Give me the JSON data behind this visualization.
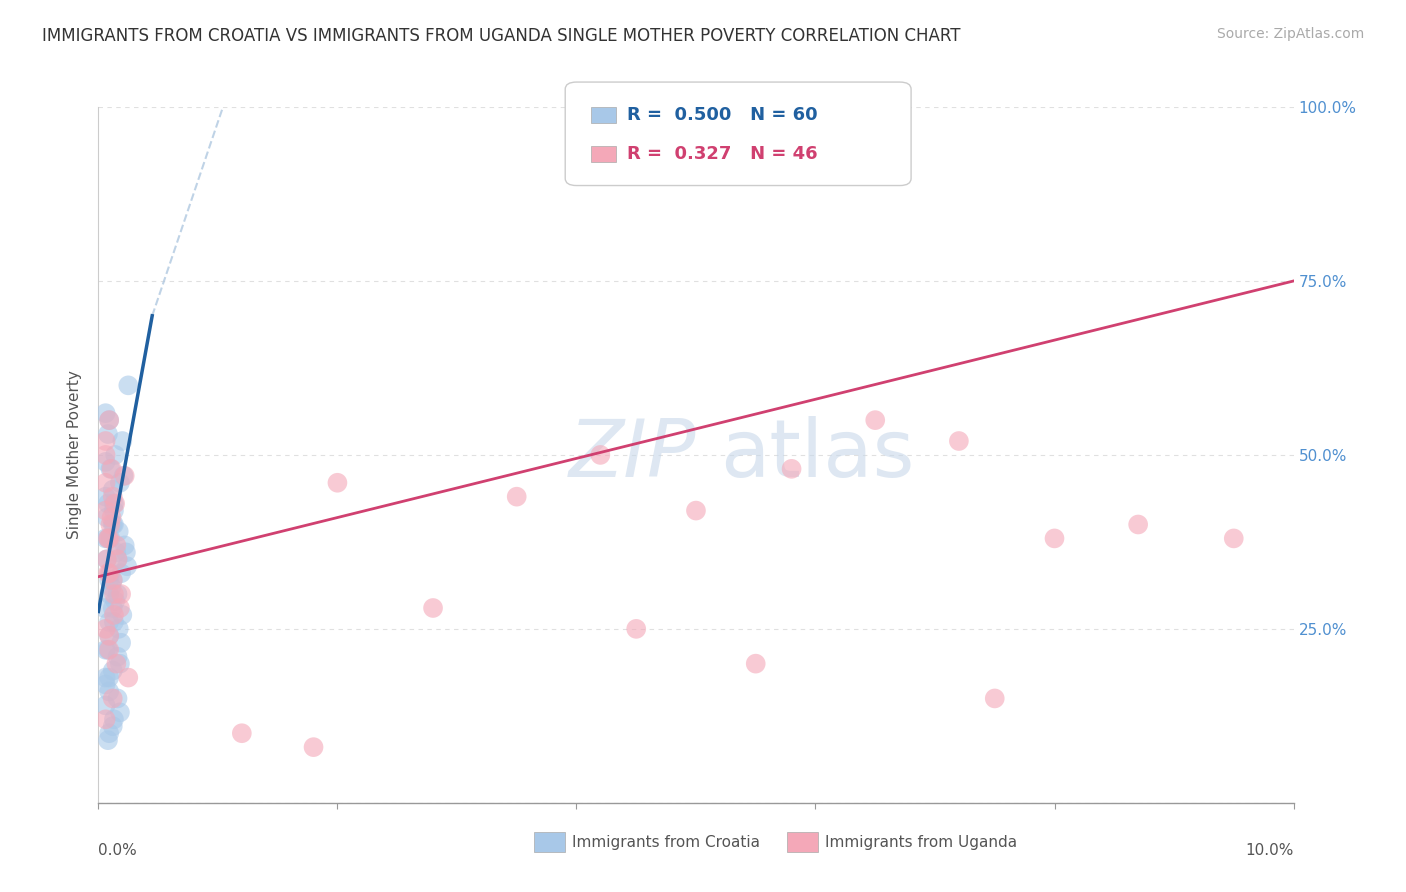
{
  "title": "IMMIGRANTS FROM CROATIA VS IMMIGRANTS FROM UGANDA SINGLE MOTHER POVERTY CORRELATION CHART",
  "source": "Source: ZipAtlas.com",
  "ylabel": "Single Mother Poverty",
  "legend_label1": "Immigrants from Croatia",
  "legend_label2": "Immigrants from Uganda",
  "r1": "0.500",
  "n1": "60",
  "r2": "0.327",
  "n2": "46",
  "color1": "#a8c8e8",
  "color2": "#f4a8b8",
  "line_color1": "#2060a0",
  "line_color2": "#d04070",
  "diag_color": "#b0c8e0",
  "xlim": [
    0.0,
    0.1
  ],
  "ylim": [
    0.0,
    1.0
  ],
  "x_ticks": [
    0.0,
    0.02,
    0.04,
    0.06,
    0.08,
    0.1
  ],
  "y_ticks": [
    0.0,
    0.25,
    0.5,
    0.75,
    1.0
  ],
  "y_tick_labels_right": [
    "",
    "25.0%",
    "50.0%",
    "75.0%",
    "100.0%"
  ],
  "bg_color": "#ffffff",
  "grid_color": "#e0e0e0",
  "watermark_color": "#c8d8ea",
  "croatia_x": [
    0.0008,
    0.0012,
    0.0008,
    0.0015,
    0.002,
    0.001,
    0.0006,
    0.0014,
    0.0018,
    0.0009,
    0.0007,
    0.0016,
    0.0013,
    0.0022,
    0.0025,
    0.0019,
    0.0012,
    0.0009,
    0.0006,
    0.0017,
    0.0021,
    0.0011,
    0.0008,
    0.0024,
    0.0005,
    0.0013,
    0.001,
    0.0016,
    0.0006,
    0.0009,
    0.0014,
    0.0007,
    0.002,
    0.001,
    0.0017,
    0.0013,
    0.0006,
    0.0023,
    0.0009,
    0.0012,
    0.0018,
    0.0006,
    0.0009,
    0.0012,
    0.0019,
    0.0009,
    0.0006,
    0.0013,
    0.0016,
    0.0009,
    0.0006,
    0.0012,
    0.0008,
    0.0016,
    0.0013,
    0.0009,
    0.0006,
    0.0018,
    0.0012,
    0.0008
  ],
  "croatia_y": [
    0.43,
    0.4,
    0.38,
    0.36,
    0.52,
    0.48,
    0.44,
    0.5,
    0.46,
    0.55,
    0.41,
    0.35,
    0.42,
    0.37,
    0.6,
    0.33,
    0.45,
    0.32,
    0.49,
    0.39,
    0.47,
    0.31,
    0.53,
    0.34,
    0.28,
    0.43,
    0.38,
    0.3,
    0.56,
    0.26,
    0.29,
    0.35,
    0.27,
    0.33,
    0.25,
    0.4,
    0.22,
    0.36,
    0.24,
    0.32,
    0.2,
    0.38,
    0.18,
    0.28,
    0.23,
    0.3,
    0.17,
    0.26,
    0.21,
    0.16,
    0.14,
    0.19,
    0.22,
    0.15,
    0.12,
    0.1,
    0.18,
    0.13,
    0.11,
    0.09
  ],
  "uganda_x": [
    0.0006,
    0.0009,
    0.0007,
    0.0012,
    0.001,
    0.0006,
    0.0015,
    0.0011,
    0.0008,
    0.0006,
    0.0013,
    0.0009,
    0.0018,
    0.0014,
    0.0012,
    0.0008,
    0.0006,
    0.0022,
    0.0016,
    0.0011,
    0.0009,
    0.0006,
    0.0013,
    0.0009,
    0.0015,
    0.0025,
    0.0019,
    0.0012,
    0.0009,
    0.0006,
    0.02,
    0.035,
    0.042,
    0.05,
    0.058,
    0.065,
    0.072,
    0.08,
    0.087,
    0.095,
    0.028,
    0.045,
    0.055,
    0.075,
    0.012,
    0.018
  ],
  "uganda_y": [
    0.42,
    0.38,
    0.35,
    0.44,
    0.4,
    0.46,
    0.37,
    0.48,
    0.33,
    0.52,
    0.3,
    0.55,
    0.28,
    0.43,
    0.32,
    0.38,
    0.25,
    0.47,
    0.35,
    0.41,
    0.22,
    0.5,
    0.27,
    0.33,
    0.2,
    0.18,
    0.3,
    0.15,
    0.24,
    0.12,
    0.46,
    0.44,
    0.5,
    0.42,
    0.48,
    0.55,
    0.52,
    0.38,
    0.4,
    0.38,
    0.28,
    0.25,
    0.2,
    0.15,
    0.1,
    0.08
  ]
}
